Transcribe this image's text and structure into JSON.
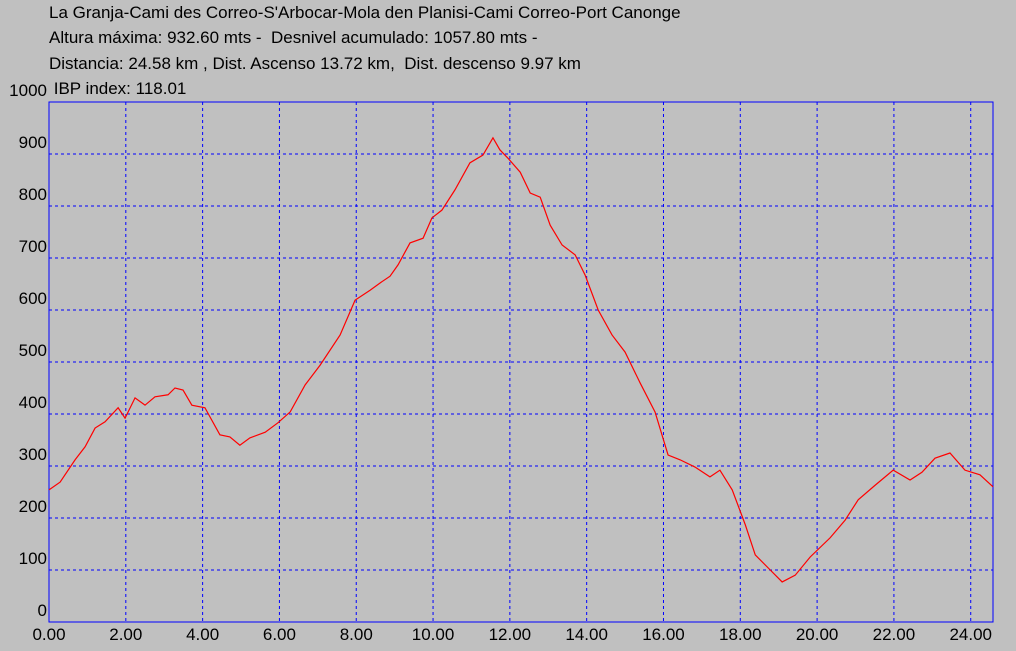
{
  "chart_data": {
    "type": "line",
    "title": "La Granja-Cami des Correo-S'Arbocar-Mola den Planisi-Cami Correo-Port Canonge",
    "info_lines": [
      "Altura máxima: 932.60 mts -  Desnivel acumulado: 1057.80 mts -",
      "Distancia: 24.58 km , Dist. Ascenso 13.72 km,  Dist. descenso 9.97 km",
      " IBP index: 118.01"
    ],
    "x": [
      0,
      0.29,
      0.68,
      0.94,
      1.2,
      1.46,
      1.8,
      1.98,
      2.24,
      2.5,
      2.76,
      3.1,
      3.28,
      3.49,
      3.72,
      4.06,
      4.45,
      4.71,
      4.97,
      5.23,
      5.63,
      5.96,
      6.28,
      6.67,
      7.06,
      7.58,
      7.97,
      8.36,
      8.62,
      8.88,
      9.09,
      9.4,
      9.74,
      9.97,
      10.23,
      10.57,
      10.96,
      11.3,
      11.56,
      11.74,
      11.95,
      12.27,
      12.53,
      12.79,
      13.05,
      13.36,
      13.7,
      13.96,
      14.3,
      14.66,
      15.0,
      15.39,
      15.78,
      16.12,
      16.43,
      16.82,
      17.21,
      17.47,
      17.79,
      18.13,
      18.39,
      18.78,
      19.09,
      19.43,
      19.82,
      20.34,
      20.73,
      21.07,
      21.51,
      21.98,
      22.42,
      22.73,
      23.07,
      23.46,
      23.85,
      24.24,
      24.58
    ],
    "series": [
      {
        "color": "#ff0000",
        "values": [
          254,
          269,
          312,
          337,
          373,
          385,
          412,
          392,
          431,
          417,
          433,
          437,
          450,
          446,
          417,
          412,
          360,
          356,
          340,
          354,
          365,
          383,
          404,
          456,
          494,
          552,
          619,
          638,
          652,
          665,
          687,
          729,
          738,
          777,
          792,
          831,
          883,
          898,
          931,
          908,
          892,
          865,
          825,
          817,
          763,
          725,
          706,
          667,
          600,
          552,
          519,
          460,
          404,
          321,
          312,
          298,
          279,
          292,
          254,
          187,
          129,
          100,
          77,
          90,
          125,
          162,
          196,
          235,
          263,
          292,
          273,
          288,
          315,
          325,
          292,
          283,
          260
        ]
      }
    ],
    "xlim": [
      0,
      24.58
    ],
    "ylim": [
      0,
      1000
    ],
    "xticks": [
      {
        "value": 0,
        "label": "0.00"
      },
      {
        "value": 2,
        "label": "2.00"
      },
      {
        "value": 4,
        "label": "4.00"
      },
      {
        "value": 6,
        "label": "6.00"
      },
      {
        "value": 8,
        "label": "8.00"
      },
      {
        "value": 10,
        "label": "10.00"
      },
      {
        "value": 12,
        "label": "12.00"
      },
      {
        "value": 14,
        "label": "14.00"
      },
      {
        "value": 16,
        "label": "16.00"
      },
      {
        "value": 18,
        "label": "18.00"
      },
      {
        "value": 20,
        "label": "20.00"
      },
      {
        "value": 22,
        "label": "22.00"
      },
      {
        "value": 24,
        "label": "24.00"
      }
    ],
    "yticks": [
      0,
      100,
      200,
      300,
      400,
      500,
      600,
      700,
      800,
      900,
      1000
    ],
    "grid": true,
    "grid_color": "#0000ff"
  }
}
